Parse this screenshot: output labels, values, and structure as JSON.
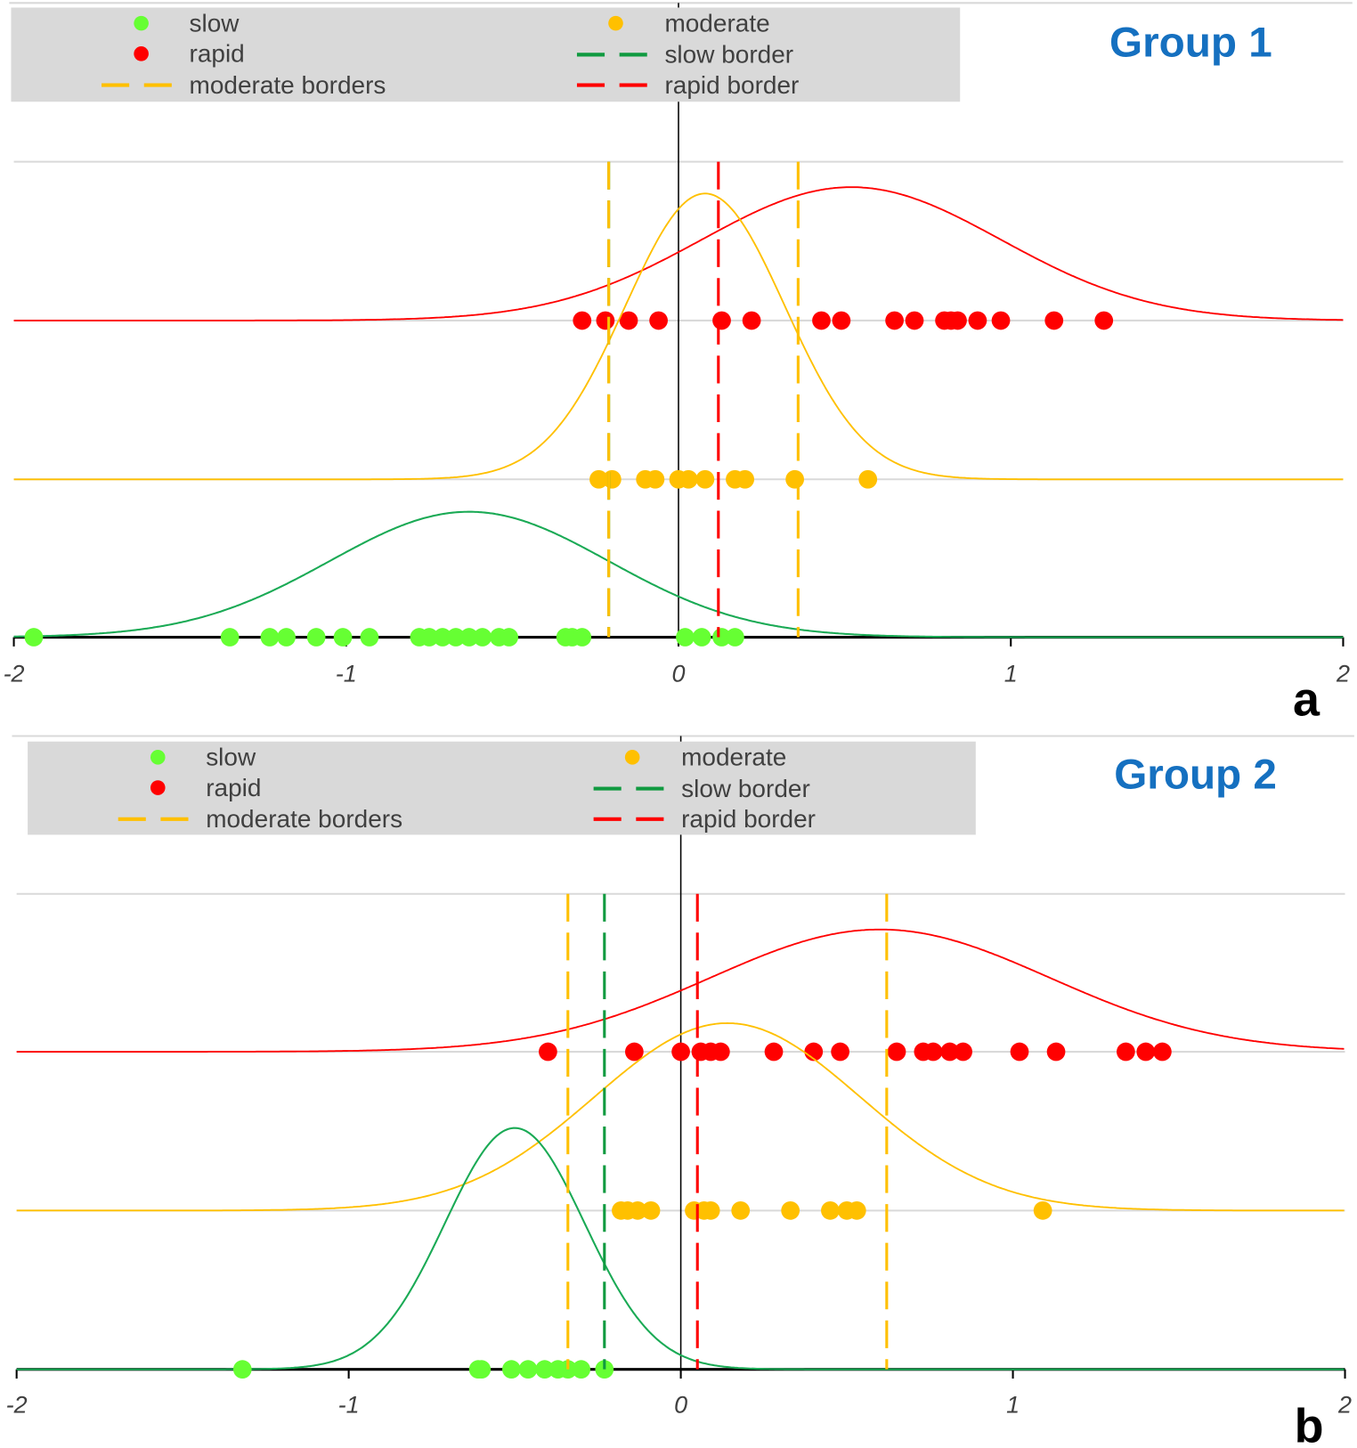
{
  "colors": {
    "slow_point": "#66ff33",
    "slow_curve": "#1aaa55",
    "slow_border": "#109a40",
    "moderate": "#ffc000",
    "rapid": "#ff0000",
    "legend_bg": "#d9d9d9",
    "title": "#1570c0",
    "grid": "#d9d9d9"
  },
  "legend": {
    "slow": "slow",
    "moderate": "moderate",
    "rapid": "rapid",
    "slow_border": "slow border",
    "moderate_borders": "moderate borders",
    "rapid_border": "rapid border"
  },
  "chart_data": [
    {
      "type": "scatter",
      "title": "Group 1",
      "panel_label": "a",
      "xlim": [
        -2,
        2
      ],
      "x_ticks": [
        "-2",
        "-1",
        "0",
        "1",
        "2"
      ],
      "grid": "horizontal",
      "legend_placement": "top",
      "series": [
        {
          "name": "rapid",
          "points": [
            -0.29,
            -0.22,
            -0.15,
            -0.06,
            0.13,
            0.22,
            0.43,
            0.49,
            0.65,
            0.71,
            0.8,
            0.82,
            0.84,
            0.9,
            0.97,
            1.13,
            1.28
          ],
          "curve": {
            "mean": 0.52,
            "sd": 0.45,
            "peak_height": 0.84
          }
        },
        {
          "name": "moderate",
          "points": [
            -0.24,
            -0.2,
            -0.1,
            -0.07,
            0.0,
            0.03,
            0.08,
            0.17,
            0.2,
            0.35,
            0.57
          ],
          "curve": {
            "mean": 0.08,
            "sd": 0.24,
            "peak_height": 1.8
          }
        },
        {
          "name": "slow",
          "points": [
            -1.94,
            -1.35,
            -1.23,
            -1.18,
            -1.09,
            -1.01,
            -0.93,
            -0.78,
            -0.75,
            -0.71,
            -0.67,
            -0.63,
            -0.59,
            -0.54,
            -0.51,
            -0.34,
            -0.32,
            -0.29,
            0.02,
            0.07,
            0.13,
            0.17
          ],
          "curve": {
            "mean": -0.63,
            "sd": 0.42,
            "peak_height": 0.79
          }
        }
      ],
      "borders": {
        "slow": [
          -0.21
        ],
        "moderate": [
          -0.21,
          0.36
        ],
        "rapid": [
          0.12
        ]
      }
    },
    {
      "type": "scatter",
      "title": "Group 2",
      "panel_label": "b",
      "xlim": [
        -2,
        2
      ],
      "x_ticks": [
        "-2",
        "-1",
        "0",
        "1",
        "2"
      ],
      "grid": "horizontal",
      "legend_placement": "top",
      "series": [
        {
          "name": "rapid",
          "points": [
            -0.4,
            -0.14,
            0.0,
            0.06,
            0.09,
            0.12,
            0.28,
            0.4,
            0.48,
            0.65,
            0.73,
            0.76,
            0.81,
            0.85,
            1.02,
            1.13,
            1.34,
            1.4,
            1.45
          ],
          "curve": {
            "mean": 0.6,
            "sd": 0.51,
            "peak_height": 0.77
          }
        },
        {
          "name": "moderate",
          "points": [
            -0.18,
            -0.16,
            -0.13,
            -0.09,
            0.04,
            0.07,
            0.09,
            0.18,
            0.33,
            0.45,
            0.5,
            0.53,
            1.09
          ],
          "curve": {
            "mean": 0.14,
            "sd": 0.4,
            "peak_height": 1.18
          }
        },
        {
          "name": "slow",
          "points": [
            -1.32,
            -0.61,
            -0.6,
            -0.51,
            -0.46,
            -0.41,
            -0.37,
            -0.34,
            -0.3,
            -0.23
          ],
          "curve": {
            "mean": -0.5,
            "sd": 0.21,
            "peak_height": 1.52
          }
        }
      ],
      "borders": {
        "slow": [
          -0.23
        ],
        "moderate": [
          -0.34,
          0.62
        ],
        "rapid": [
          0.05
        ]
      }
    }
  ]
}
